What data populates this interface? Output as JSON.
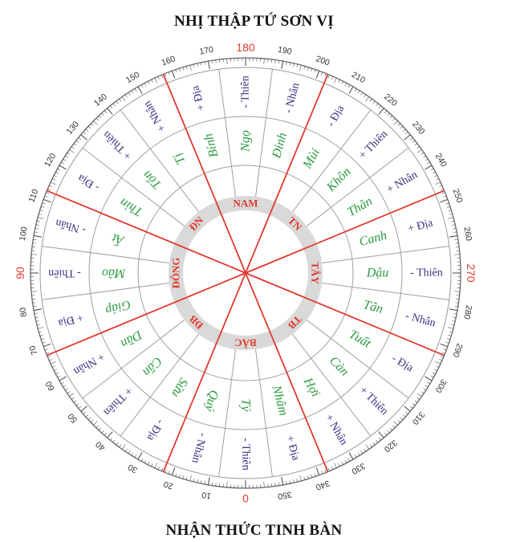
{
  "title": "NHỊ THẬP TỨ SƠN VỊ",
  "footer": "NHẬN THỨC TINH BÀN",
  "colors": {
    "red": "#e03a2f",
    "blue": "#3c2f82",
    "green": "#2a9a3e",
    "ring": "#d9d9d9",
    "line": "#a0a0a0"
  },
  "degree_labels": [
    "0",
    "10",
    "20",
    "30",
    "40",
    "50",
    "60",
    "70",
    "80",
    "90",
    "100",
    "110",
    "120",
    "130",
    "140",
    "150",
    "160",
    "170",
    "180",
    "190",
    "200",
    "210",
    "220",
    "230",
    "240",
    "250",
    "260",
    "270",
    "280",
    "290",
    "300",
    "310",
    "320",
    "330",
    "340",
    "350"
  ],
  "highlight_degrees": [
    "0",
    "90",
    "180",
    "270"
  ],
  "mountains": [
    "Tý",
    "Quý",
    "Sửu",
    "Cấn",
    "Dần",
    "Giáp",
    "Mão",
    "Ất",
    "Thìn",
    "Tốn",
    "Tị",
    "Bính",
    "Ngọ",
    "Đinh",
    "Mùi",
    "Khôn",
    "Thân",
    "Canh",
    "Dậu",
    "Tân",
    "Tuất",
    "Càn",
    "Hợi",
    "Nhâm"
  ],
  "polarity": [
    "- Thiên",
    "- Nhân",
    "- Địa",
    "+ Thiên",
    "+ Nhân",
    "+ Địa",
    "- Thiên",
    "- Nhân",
    "- Địa",
    "+ Thiên",
    "+ Nhân",
    "+ Địa",
    "- Thiên",
    "- Nhân",
    "- Địa",
    "+ Thiên",
    "+ Nhân",
    "+ Địa",
    "- Thiên",
    "- Nhân",
    "- Địa",
    "+ Thiên",
    "+ Nhân",
    "+ Địa"
  ],
  "directions": [
    "BẮC",
    "ĐB",
    "ĐÔNG",
    "ĐN",
    "NAM",
    "TN",
    "TÂY",
    "TB"
  ]
}
